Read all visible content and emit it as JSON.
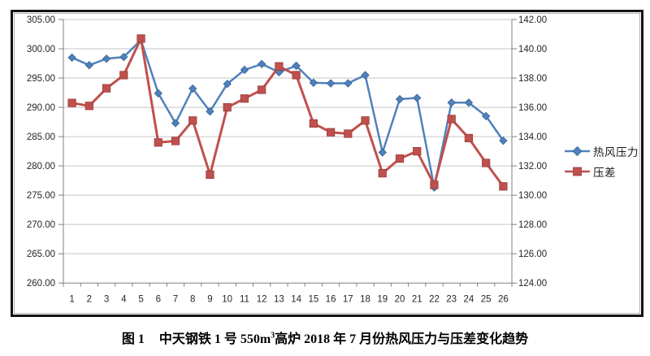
{
  "figure": {
    "caption_label": "图 1",
    "caption_part1": "中天钢铁 1 号 550m",
    "caption_sup": "3",
    "caption_part2": "高炉 2018 年 7 月份热风压力与压差变化趋势"
  },
  "chart_data": {
    "type": "line",
    "title": "图1 中天钢铁1号550m³高炉2018年7月份热风压力与压差变化趋势",
    "categories": [
      1,
      2,
      3,
      4,
      5,
      6,
      7,
      8,
      9,
      10,
      11,
      12,
      13,
      14,
      15,
      16,
      17,
      18,
      19,
      20,
      21,
      22,
      23,
      24,
      25,
      26
    ],
    "series": [
      {
        "name": "热风压力",
        "axis": "left",
        "color": "#4F81BD",
        "edge_color": "#38618F",
        "marker": "diamond",
        "values": [
          298.5,
          297.2,
          298.3,
          298.6,
          301.5,
          292.4,
          287.3,
          293.2,
          289.3,
          294.0,
          296.4,
          297.4,
          296.0,
          297.1,
          294.2,
          294.1,
          294.1,
          295.5,
          282.3,
          291.4,
          291.6,
          276.3,
          290.8,
          290.8,
          288.5,
          284.3
        ]
      },
      {
        "name": "压差",
        "axis": "right",
        "color": "#C0504D",
        "edge_color": "#943E3B",
        "marker": "square",
        "values": [
          136.3,
          136.1,
          137.3,
          138.2,
          140.7,
          133.6,
          133.7,
          135.1,
          131.4,
          136.0,
          136.6,
          137.2,
          138.8,
          138.2,
          134.9,
          134.3,
          134.2,
          135.1,
          131.5,
          132.5,
          133.0,
          130.7,
          135.2,
          133.9,
          132.2,
          130.6
        ]
      }
    ],
    "left_axis": {
      "min": 260,
      "max": 305,
      "step": 5,
      "decimals": 2
    },
    "right_axis": {
      "min": 124,
      "max": 142,
      "step": 2,
      "decimals": 2
    },
    "xlabel": "",
    "ylabel": "",
    "grid": true,
    "legend_position": "right",
    "styles": {
      "gridline_color": "#C6C6C6",
      "axis_color": "#808080",
      "tick_label_color": "#262626"
    }
  }
}
